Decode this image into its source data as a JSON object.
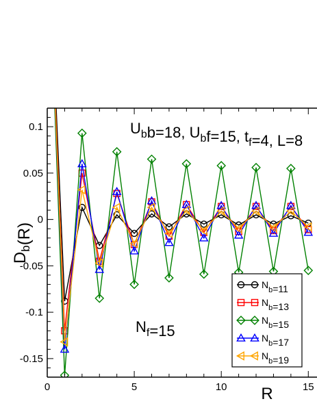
{
  "chart_data": {
    "type": "line",
    "title": "U_bb=18, U_bf=15, t_f=4, L=8",
    "annotation": "N_f=15",
    "xlabel": "R",
    "ylabel": "D_b(R)",
    "xlim": [
      0,
      15.5
    ],
    "ylim": [
      -0.17,
      0.12
    ],
    "x_ticks": [
      0,
      5,
      10,
      15
    ],
    "x_tick_labels": [
      "0",
      "5",
      "10",
      "15"
    ],
    "y_ticks": [
      0.1,
      0.05,
      0,
      -0.05,
      -0.1,
      -0.15
    ],
    "y_tick_labels": [
      "0.1",
      "0.05",
      "0",
      "-0.05",
      "-0.1",
      "-0.15"
    ],
    "grid": false,
    "legend_position": "bottom-right",
    "x": [
      0,
      1,
      2,
      3,
      4,
      5,
      6,
      7,
      8,
      9,
      10,
      11,
      12,
      13,
      14,
      15
    ],
    "series": [
      {
        "name": "N_b=11",
        "color": "#000000",
        "marker": "circle",
        "values": [
          0.34,
          -0.088,
          0.013,
          -0.028,
          0.005,
          -0.015,
          0.006,
          -0.008,
          0.006,
          -0.005,
          0.005,
          -0.006,
          0.005,
          -0.005,
          0.004,
          -0.004
        ]
      },
      {
        "name": "N_b=13",
        "color": "#ff0000",
        "marker": "square",
        "values": [
          0.34,
          -0.12,
          0.05,
          -0.045,
          0.028,
          -0.027,
          0.019,
          -0.018,
          0.016,
          -0.014,
          0.014,
          -0.013,
          0.014,
          -0.012,
          0.014,
          -0.011
        ]
      },
      {
        "name": "N_b=15",
        "color": "#008000",
        "marker": "diamond",
        "values": [
          0.34,
          -0.168,
          0.093,
          -0.085,
          0.073,
          -0.07,
          0.065,
          -0.063,
          0.06,
          -0.059,
          0.058,
          -0.057,
          0.056,
          -0.056,
          0.055,
          -0.055
        ]
      },
      {
        "name": "N_b=17",
        "color": "#0000ff",
        "marker": "triangle-up",
        "values": [
          0.34,
          -0.14,
          0.06,
          -0.054,
          0.03,
          -0.034,
          0.02,
          -0.025,
          0.016,
          -0.02,
          0.015,
          -0.017,
          0.015,
          -0.015,
          0.015,
          -0.014
        ]
      },
      {
        "name": "N_b=19",
        "color": "#ffa500",
        "marker": "triangle-left",
        "values": [
          0.34,
          -0.132,
          0.032,
          -0.047,
          0.013,
          -0.026,
          0.013,
          -0.015,
          0.01,
          -0.012,
          0.009,
          -0.01,
          0.009,
          -0.009,
          0.009,
          -0.008
        ]
      }
    ]
  }
}
